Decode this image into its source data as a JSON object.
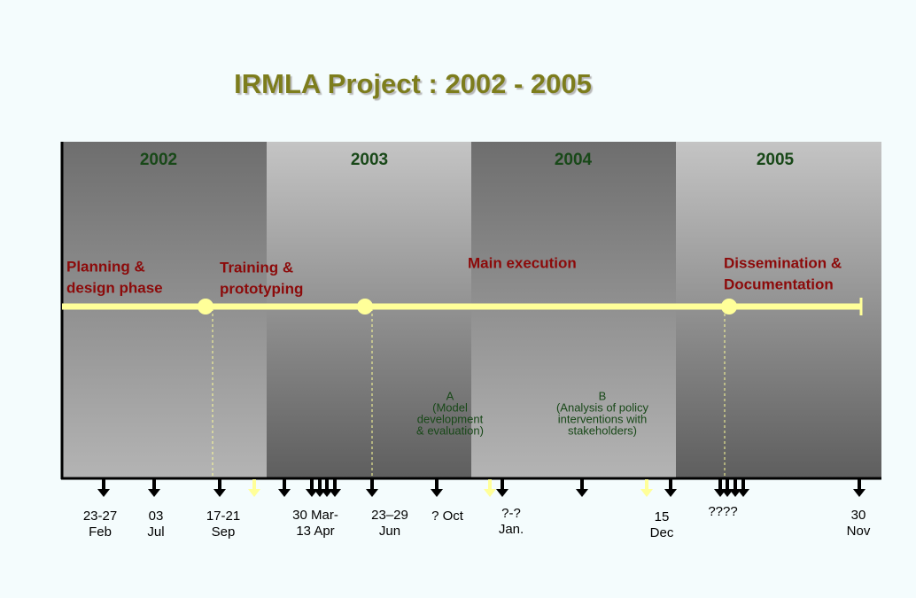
{
  "header": {
    "title": "IRMLA Project : 2002 - 2005"
  },
  "years": [
    "2002",
    "2003",
    "2004",
    "2005"
  ],
  "phases": [
    {
      "lines": [
        "Planning &",
        "design phase"
      ]
    },
    {
      "lines": [
        "Training &",
        "prototyping"
      ]
    },
    {
      "lines": [
        "Main execution"
      ]
    },
    {
      "lines": [
        "Dissemination &",
        "Documentation"
      ]
    }
  ],
  "notes": [
    {
      "lines": [
        "A",
        "(Model",
        "development",
        "&  evaluation)"
      ]
    },
    {
      "lines": [
        "B",
        "(Analysis of policy",
        "interventions with",
        "stakeholders)"
      ]
    }
  ],
  "dates": [
    {
      "lines": [
        "23-27",
        "Feb"
      ]
    },
    {
      "lines": [
        "03",
        "Jul"
      ]
    },
    {
      "lines": [
        "17-21",
        "Sep"
      ]
    },
    {
      "lines": [
        "30 Mar-",
        "13 Apr"
      ]
    },
    {
      "lines": [
        "23–29",
        "Jun"
      ]
    },
    {
      "lines": [
        "? Oct"
      ]
    },
    {
      "lines": [
        "?-?",
        "Jan."
      ]
    },
    {
      "lines": [
        "15",
        "Dec"
      ]
    },
    {
      "lines": [
        "????"
      ]
    },
    {
      "lines": [
        "30",
        "Nov"
      ]
    }
  ]
}
